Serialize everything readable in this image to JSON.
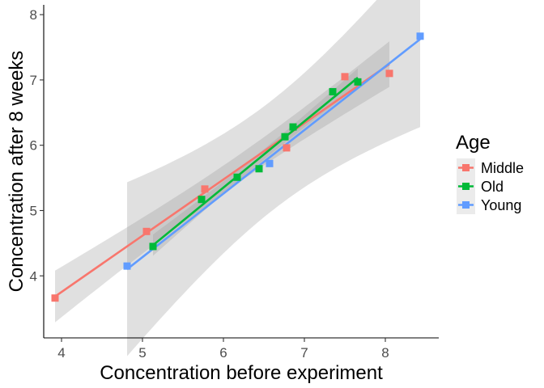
{
  "chart_data": {
    "type": "scatter",
    "title": "",
    "xlabel": "Concentration before experiment",
    "ylabel": "Concentration after 8 weeks",
    "xlim": [
      3.78,
      8.66
    ],
    "ylim": [
      3.05,
      8.15
    ],
    "x_ticks": [
      4,
      5,
      6,
      7,
      8
    ],
    "y_ticks": [
      4,
      5,
      6,
      7,
      8
    ],
    "grid": false,
    "legend": {
      "title": "Age",
      "placement": "right"
    },
    "smoothing": "linear fit with confidence band",
    "series": [
      {
        "name": "Middle",
        "color": "#F8766D",
        "x": [
          3.92,
          5.05,
          5.77,
          6.78,
          7.5,
          8.05
        ],
        "y": [
          3.66,
          4.68,
          5.33,
          5.96,
          7.05,
          7.1
        ]
      },
      {
        "name": "Old",
        "color": "#00BA38",
        "x": [
          5.13,
          5.73,
          6.17,
          6.44,
          6.76,
          6.86,
          7.35,
          7.66
        ],
        "y": [
          4.45,
          5.17,
          5.51,
          5.64,
          6.13,
          6.28,
          6.82,
          6.97
        ]
      },
      {
        "name": "Young",
        "color": "#619CFF",
        "x": [
          4.81,
          6.57,
          8.43
        ],
        "y": [
          4.15,
          5.72,
          7.67
        ]
      }
    ]
  }
}
